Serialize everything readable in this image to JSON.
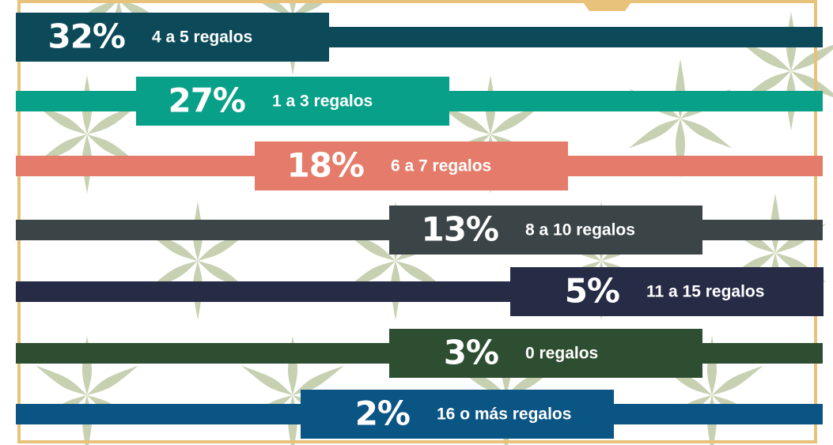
{
  "chart_data": {
    "type": "bar",
    "categories": [
      "4 a 5 regalos",
      "1 a 3 regalos",
      "6 a 7 regalos",
      "8 a 10 regalos",
      "11 a 15 regalos",
      "0 regalos",
      "16 o más regalos"
    ],
    "values": [
      32,
      27,
      18,
      13,
      5,
      3,
      2
    ],
    "value_labels": [
      "32%",
      "27%",
      "18%",
      "13%",
      "5%",
      "3%",
      "2%"
    ],
    "colors": [
      "#0c4a5a",
      "#08a088",
      "#e57c6b",
      "#3b4548",
      "#262b46",
      "#2e4e31",
      "#0b5585"
    ]
  }
}
